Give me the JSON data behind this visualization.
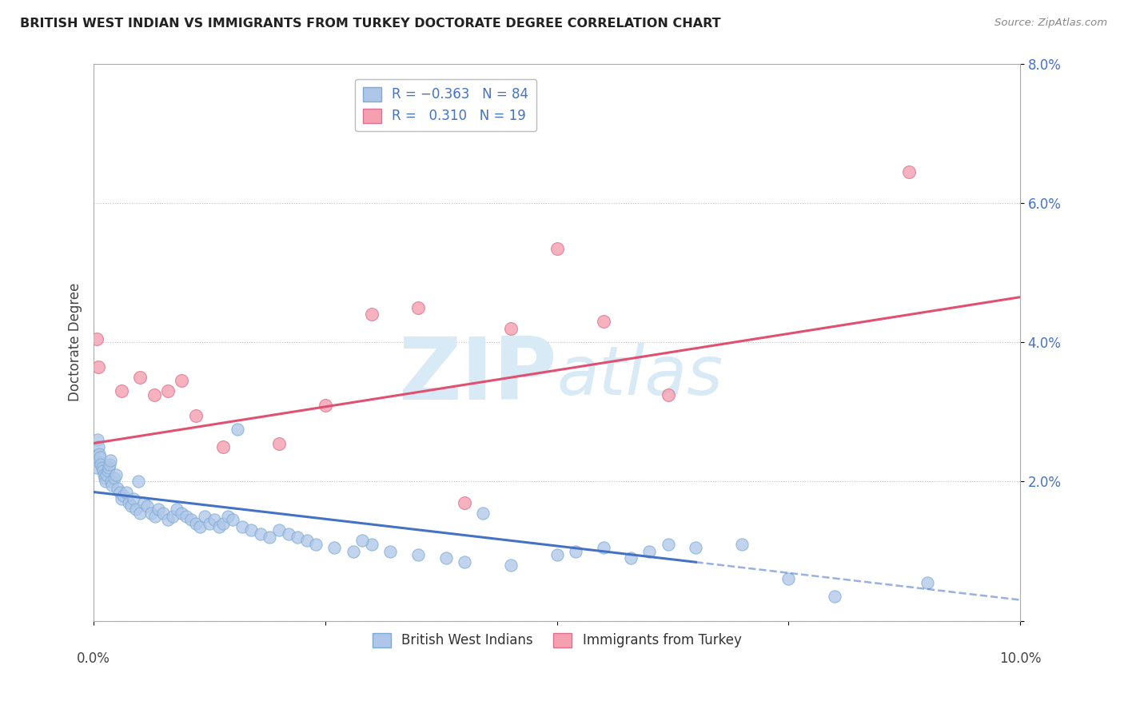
{
  "title": "BRITISH WEST INDIAN VS IMMIGRANTS FROM TURKEY DOCTORATE DEGREE CORRELATION CHART",
  "source": "Source: ZipAtlas.com",
  "ylabel": "Doctorate Degree",
  "xlim": [
    0,
    10
  ],
  "ylim": [
    0,
    8
  ],
  "blue_line_color": "#4472C4",
  "pink_line_color": "#E05070",
  "scatter_blue_color": "#AEC6E8",
  "scatter_blue_edge": "#7BACD4",
  "scatter_pink_color": "#F4A0B0",
  "scatter_pink_edge": "#E07090",
  "watermark_color": "#D8EAF5",
  "background_color": "#FFFFFF",
  "grid_color": "#BBBBBB",
  "blue_intercept": 1.85,
  "blue_slope": -0.155,
  "pink_intercept": 2.55,
  "pink_slope": 0.21,
  "blue_solid_end": 6.5,
  "blue_x": [
    0.02,
    0.03,
    0.04,
    0.05,
    0.06,
    0.07,
    0.08,
    0.09,
    0.1,
    0.11,
    0.12,
    0.13,
    0.14,
    0.15,
    0.16,
    0.17,
    0.18,
    0.19,
    0.2,
    0.22,
    0.24,
    0.26,
    0.28,
    0.3,
    0.32,
    0.35,
    0.38,
    0.4,
    0.43,
    0.46,
    0.5,
    0.54,
    0.58,
    0.62,
    0.66,
    0.7,
    0.75,
    0.8,
    0.85,
    0.9,
    0.95,
    1.0,
    1.05,
    1.1,
    1.15,
    1.2,
    1.25,
    1.3,
    1.35,
    1.4,
    1.45,
    1.5,
    1.6,
    1.7,
    1.8,
    1.9,
    2.0,
    2.1,
    2.2,
    2.3,
    2.4,
    2.6,
    2.8,
    3.0,
    3.2,
    3.5,
    3.8,
    4.0,
    4.5,
    5.0,
    5.2,
    5.5,
    5.8,
    6.0,
    6.2,
    6.5,
    7.0,
    7.5,
    8.0,
    9.0,
    4.2,
    2.9,
    1.55,
    0.48
  ],
  "blue_y": [
    2.3,
    2.2,
    2.6,
    2.5,
    2.4,
    2.35,
    2.25,
    2.2,
    2.15,
    2.1,
    2.05,
    2.0,
    2.1,
    2.15,
    2.2,
    2.25,
    2.3,
    2.0,
    1.95,
    2.05,
    2.1,
    1.9,
    1.85,
    1.75,
    1.8,
    1.85,
    1.7,
    1.65,
    1.75,
    1.6,
    1.55,
    1.7,
    1.65,
    1.55,
    1.5,
    1.6,
    1.55,
    1.45,
    1.5,
    1.6,
    1.55,
    1.5,
    1.45,
    1.4,
    1.35,
    1.5,
    1.4,
    1.45,
    1.35,
    1.4,
    1.5,
    1.45,
    1.35,
    1.3,
    1.25,
    1.2,
    1.3,
    1.25,
    1.2,
    1.15,
    1.1,
    1.05,
    1.0,
    1.1,
    1.0,
    0.95,
    0.9,
    0.85,
    0.8,
    0.95,
    1.0,
    1.05,
    0.9,
    1.0,
    1.1,
    1.05,
    1.1,
    0.6,
    0.35,
    0.55,
    1.55,
    1.15,
    2.75,
    2.0
  ],
  "pink_x": [
    0.03,
    0.05,
    0.3,
    0.5,
    0.65,
    0.8,
    0.95,
    1.1,
    1.4,
    2.0,
    2.5,
    3.0,
    3.5,
    4.0,
    4.5,
    5.0,
    5.5,
    8.8,
    6.2
  ],
  "pink_y": [
    4.05,
    3.65,
    3.3,
    3.5,
    3.25,
    3.3,
    3.45,
    2.95,
    2.5,
    2.55,
    3.1,
    4.4,
    4.5,
    1.7,
    4.2,
    5.35,
    4.3,
    6.45,
    3.25
  ]
}
